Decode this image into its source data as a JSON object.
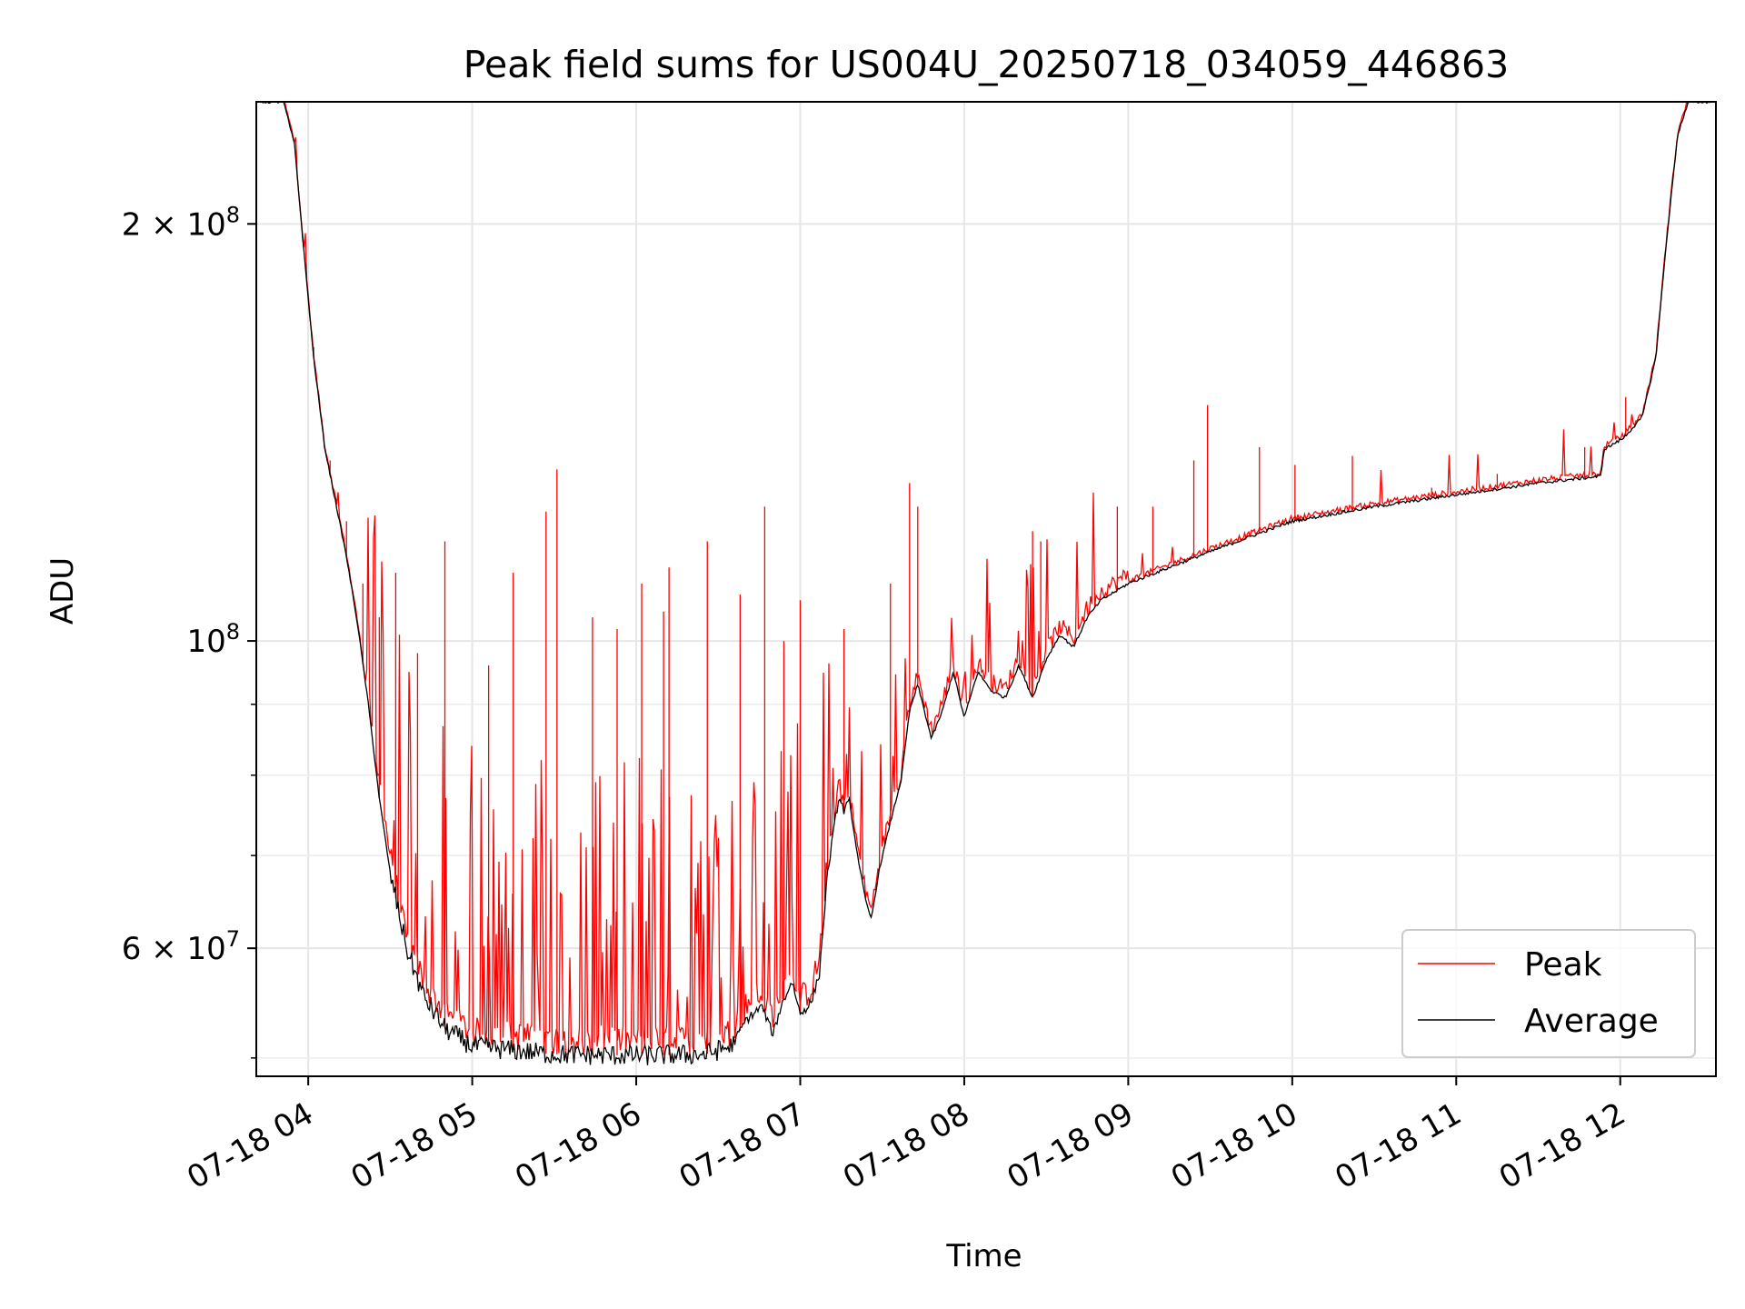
{
  "chart_data": {
    "type": "line",
    "title": "Peak field sums for US004U_20250718_034059_446863",
    "xlabel": "Time",
    "ylabel": "ADU",
    "x_axis_kind": "time",
    "x_range": [
      "2025-07-18T03:41:00",
      "2025-07-18T12:35:00"
    ],
    "x_ticks": [
      {
        "t": "2025-07-18T04:00:00",
        "label": "07-18 04"
      },
      {
        "t": "2025-07-18T05:00:00",
        "label": "07-18 05"
      },
      {
        "t": "2025-07-18T06:00:00",
        "label": "07-18 06"
      },
      {
        "t": "2025-07-18T07:00:00",
        "label": "07-18 07"
      },
      {
        "t": "2025-07-18T08:00:00",
        "label": "07-18 08"
      },
      {
        "t": "2025-07-18T09:00:00",
        "label": "07-18 09"
      },
      {
        "t": "2025-07-18T10:00:00",
        "label": "07-18 10"
      },
      {
        "t": "2025-07-18T11:00:00",
        "label": "07-18 11"
      },
      {
        "t": "2025-07-18T12:00:00",
        "label": "07-18 12"
      }
    ],
    "y_scale": "log",
    "ylim": [
      48500000,
      245000000
    ],
    "y_major_ticks": [
      {
        "value": 60000000,
        "base": "6 × 10",
        "exp": "7"
      },
      {
        "value": 100000000,
        "base": "10",
        "exp": "8"
      },
      {
        "value": 200000000,
        "base": "2 × 10",
        "exp": "8"
      }
    ],
    "y_minor_ticks": [
      50000000,
      70000000,
      80000000,
      90000000
    ],
    "grid": true,
    "legend_position": "lower-right",
    "series": [
      {
        "name": "Peak",
        "color": "#ff0000",
        "spikes": [
          [
            "2025-07-18T04:02:00",
            163000000
          ],
          [
            "2025-07-18T04:08:00",
            135000000
          ],
          [
            "2025-07-18T04:14:00",
            122000000
          ],
          [
            "2025-07-18T04:20:00",
            110000000
          ],
          [
            "2025-07-18T04:26:00",
            104000000
          ],
          [
            "2025-07-18T04:32:00",
            112000000
          ],
          [
            "2025-07-18T04:40:00",
            98000000
          ],
          [
            "2025-07-18T04:50:00",
            118000000
          ],
          [
            "2025-07-18T05:06:00",
            96000000
          ],
          [
            "2025-07-18T05:15:00",
            112000000
          ],
          [
            "2025-07-18T05:31:00",
            133000000
          ],
          [
            "2025-07-18T05:27:00",
            124000000
          ],
          [
            "2025-07-18T05:44:00",
            104000000
          ],
          [
            "2025-07-18T05:53:00",
            102000000
          ],
          [
            "2025-07-18T06:02:00",
            110000000
          ],
          [
            "2025-07-18T06:10:00",
            105000000
          ],
          [
            "2025-07-18T06:12:00",
            113000000
          ],
          [
            "2025-07-18T06:26:00",
            118000000
          ],
          [
            "2025-07-18T06:38:00",
            108000000
          ],
          [
            "2025-07-18T06:47:00",
            125000000
          ],
          [
            "2025-07-18T06:54:00",
            100000000
          ],
          [
            "2025-07-18T07:00:00",
            107000000
          ],
          [
            "2025-07-18T07:16:00",
            102000000
          ],
          [
            "2025-07-18T07:33:00",
            110000000
          ],
          [
            "2025-07-18T07:40:00",
            130000000
          ],
          [
            "2025-07-18T07:43:00",
            125000000
          ],
          [
            "2025-07-18T08:25:00",
            120000000
          ],
          [
            "2025-07-18T08:28:00",
            118000000
          ],
          [
            "2025-07-18T08:56:00",
            125000000
          ],
          [
            "2025-07-18T09:09:00",
            125000000
          ],
          [
            "2025-07-18T09:24:00",
            135000000
          ],
          [
            "2025-07-18T09:29:00",
            148000000
          ],
          [
            "2025-07-18T09:48:00",
            138000000
          ],
          [
            "2025-07-18T10:01:00",
            134000000
          ],
          [
            "2025-07-18T10:22:00",
            136000000
          ],
          [
            "2025-07-18T10:51:00",
            129000000
          ],
          [
            "2025-07-18T11:15:00",
            132000000
          ],
          [
            "2025-07-18T11:40:00",
            131000000
          ],
          [
            "2025-07-18T11:47:00",
            138000000
          ],
          [
            "2025-07-18T12:02:00",
            150000000
          ]
        ]
      },
      {
        "name": "Average",
        "color": "#000000",
        "points": [
          [
            "2025-07-18T03:41:00",
            245000000
          ],
          [
            "2025-07-18T03:51:00",
            245000000
          ],
          [
            "2025-07-18T03:55:00",
            228000000
          ],
          [
            "2025-07-18T03:58:00",
            195000000
          ],
          [
            "2025-07-18T04:02:00",
            160000000
          ],
          [
            "2025-07-18T04:06:00",
            138000000
          ],
          [
            "2025-07-18T04:10:00",
            126000000
          ],
          [
            "2025-07-18T04:14:00",
            115000000
          ],
          [
            "2025-07-18T04:18:00",
            103000000
          ],
          [
            "2025-07-18T04:22:00",
            90000000
          ],
          [
            "2025-07-18T04:26:00",
            77000000
          ],
          [
            "2025-07-18T04:30:00",
            68000000
          ],
          [
            "2025-07-18T04:36:00",
            60000000
          ],
          [
            "2025-07-18T04:42:00",
            55500000
          ],
          [
            "2025-07-18T04:50:00",
            52500000
          ],
          [
            "2025-07-18T05:00:00",
            51000000
          ],
          [
            "2025-07-18T05:30:00",
            50300000
          ],
          [
            "2025-07-18T06:00:00",
            50200000
          ],
          [
            "2025-07-18T06:25:00",
            50300000
          ],
          [
            "2025-07-18T06:35:00",
            51000000
          ],
          [
            "2025-07-18T06:40:00",
            53200000
          ],
          [
            "2025-07-18T06:46:00",
            54500000
          ],
          [
            "2025-07-18T06:50:00",
            52000000
          ],
          [
            "2025-07-18T06:53:00",
            54500000
          ],
          [
            "2025-07-18T06:57:00",
            56800000
          ],
          [
            "2025-07-18T07:00:00",
            53800000
          ],
          [
            "2025-07-18T07:04:00",
            54800000
          ],
          [
            "2025-07-18T07:07:00",
            57500000
          ],
          [
            "2025-07-18T07:10:00",
            68000000
          ],
          [
            "2025-07-18T07:14:00",
            77000000
          ],
          [
            "2025-07-18T07:16:00",
            75500000
          ],
          [
            "2025-07-18T07:18:00",
            76500000
          ],
          [
            "2025-07-18T07:21:00",
            70000000
          ],
          [
            "2025-07-18T07:24:00",
            64800000
          ],
          [
            "2025-07-18T07:26:00",
            63000000
          ],
          [
            "2025-07-18T07:29:00",
            68500000
          ],
          [
            "2025-07-18T07:33:00",
            74000000
          ],
          [
            "2025-07-18T07:37:00",
            79500000
          ],
          [
            "2025-07-18T07:40:00",
            89000000
          ],
          [
            "2025-07-18T07:43:00",
            93000000
          ],
          [
            "2025-07-18T07:48:00",
            85000000
          ],
          [
            "2025-07-18T07:52:00",
            89000000
          ],
          [
            "2025-07-18T07:56:00",
            95000000
          ],
          [
            "2025-07-18T08:00:00",
            88000000
          ],
          [
            "2025-07-18T08:05:00",
            95000000
          ],
          [
            "2025-07-18T08:10:00",
            92000000
          ],
          [
            "2025-07-18T08:15:00",
            91000000
          ],
          [
            "2025-07-18T08:20:00",
            96000000
          ],
          [
            "2025-07-18T08:25:00",
            91000000
          ],
          [
            "2025-07-18T08:30:00",
            97000000
          ],
          [
            "2025-07-18T08:35:00",
            101000000
          ],
          [
            "2025-07-18T08:40:00",
            99000000
          ],
          [
            "2025-07-18T08:45:00",
            104000000
          ],
          [
            "2025-07-18T08:50:00",
            107000000
          ],
          [
            "2025-07-18T09:00:00",
            110000000
          ],
          [
            "2025-07-18T09:15:00",
            113000000
          ],
          [
            "2025-07-18T09:30:00",
            116000000
          ],
          [
            "2025-07-18T09:45:00",
            119000000
          ],
          [
            "2025-07-18T10:00:00",
            122000000
          ],
          [
            "2025-07-18T10:30:00",
            125000000
          ],
          [
            "2025-07-18T11:00:00",
            127500000
          ],
          [
            "2025-07-18T11:30:00",
            130000000
          ],
          [
            "2025-07-18T11:53:00",
            131500000
          ],
          [
            "2025-07-18T11:54:00",
            137500000
          ],
          [
            "2025-07-18T12:01:00",
            140000000
          ],
          [
            "2025-07-18T12:08:00",
            145000000
          ],
          [
            "2025-07-18T12:13:00",
            160000000
          ],
          [
            "2025-07-18T12:17:00",
            195000000
          ],
          [
            "2025-07-18T12:21:00",
            232000000
          ],
          [
            "2025-07-18T12:25:00",
            245000000
          ],
          [
            "2025-07-18T12:35:00",
            245000000
          ]
        ]
      }
    ]
  }
}
